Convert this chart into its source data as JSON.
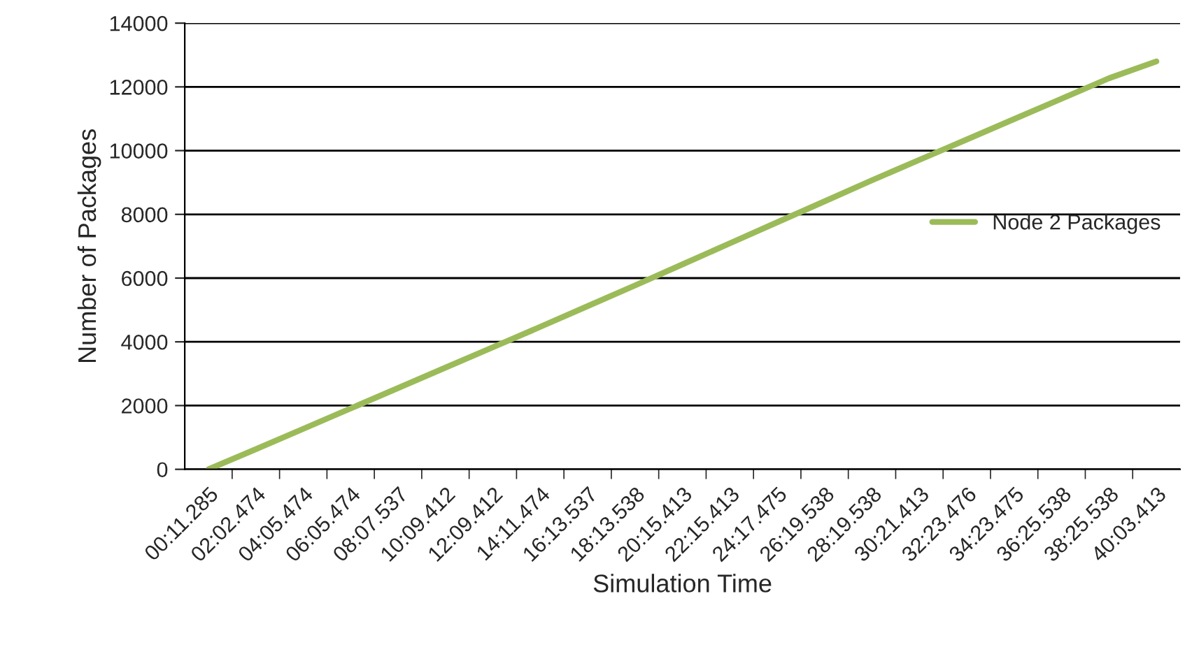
{
  "chart_data": {
    "type": "line",
    "xlabel": "Simulation Time",
    "ylabel": "Number of Packages",
    "categories": [
      "00:11.285",
      "02:02.474",
      "04:05.474",
      "06:05.474",
      "08:07.537",
      "10:09.412",
      "12:09.412",
      "14:11.474",
      "16:13.537",
      "18:13.538",
      "20:15.413",
      "22:15.413",
      "24:17.475",
      "26:19.538",
      "28:19.538",
      "30:21.413",
      "32:23.476",
      "34:23.475",
      "36:25.538",
      "38:25.538",
      "40:03.413"
    ],
    "series": [
      {
        "name": "Node 2 Packages",
        "color": "#9bbb59",
        "values": [
          0,
          630,
          1270,
          1910,
          2550,
          3190,
          3830,
          4470,
          5120,
          5770,
          6430,
          7090,
          7750,
          8410,
          9070,
          9710,
          10350,
          10990,
          11630,
          12270,
          12800
        ]
      }
    ],
    "ylim": [
      0,
      14000
    ],
    "yticks": [
      0,
      2000,
      4000,
      6000,
      8000,
      10000,
      12000,
      14000
    ],
    "grid": "y",
    "legend": "right",
    "marker": "none",
    "line_style": "solid"
  }
}
